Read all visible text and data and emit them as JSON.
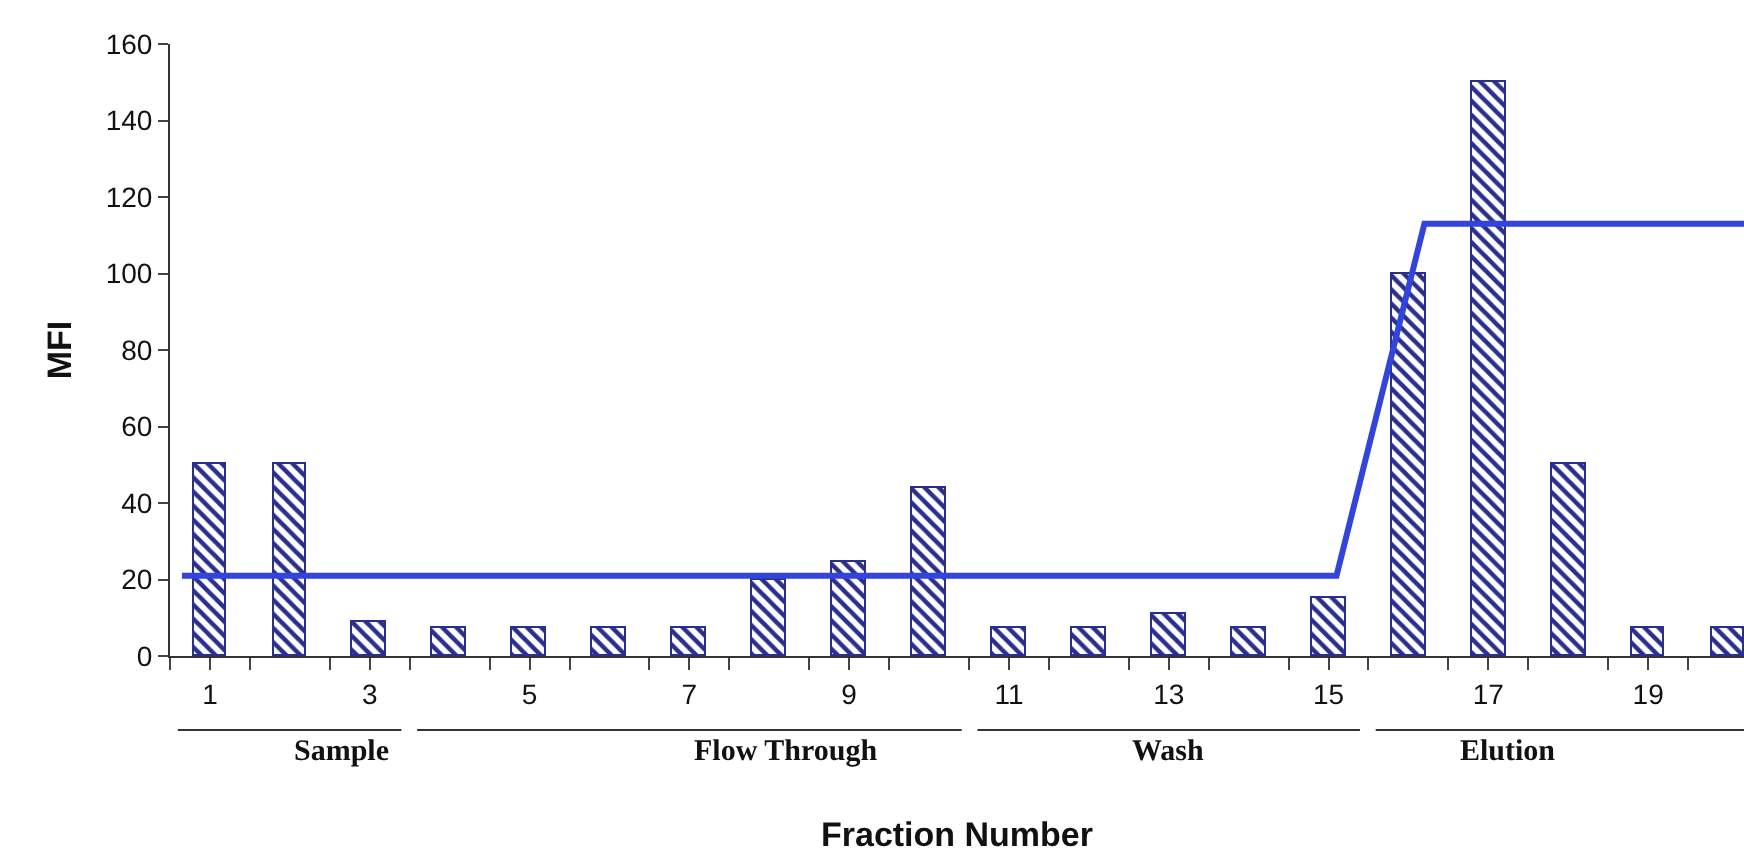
{
  "chart_data": {
    "type": "bar",
    "xlabel": "Fraction Number",
    "ylabel": "MFI",
    "x": [
      1,
      2,
      3,
      4,
      5,
      6,
      7,
      8,
      9,
      10,
      11,
      12,
      13,
      14,
      15,
      16,
      17,
      18,
      19,
      20
    ],
    "series": [
      {
        "color": "#2a2f8c",
        "values": [
          50,
          50,
          9,
          7.5,
          7.5,
          7.5,
          7.5,
          20,
          24.5,
          44,
          7.5,
          7.5,
          11,
          7.5,
          15,
          100,
          150,
          50,
          7.5,
          7.5
        ]
      },
      {
        "type": "line",
        "color": "#3344dd",
        "x": [
          0.65,
          15.1,
          16.2,
          20.2
        ],
        "values": [
          21,
          21,
          113,
          113
        ]
      }
    ],
    "xlim": [
      0.5,
      20.2
    ],
    "xticks": [
      {
        "value": 0.5,
        "label": null
      },
      1,
      {
        "value": 1.5,
        "label": null
      },
      {
        "value": 2.5,
        "label": null
      },
      3,
      {
        "value": 3.5,
        "label": null
      },
      {
        "value": 4.5,
        "label": null
      },
      5,
      {
        "value": 5.5,
        "label": null
      },
      {
        "value": 6.5,
        "label": null
      },
      7,
      {
        "value": 7.5,
        "label": null
      },
      {
        "value": 8.5,
        "label": null
      },
      9,
      {
        "value": 9.5,
        "label": null
      },
      {
        "value": 10.5,
        "label": null
      },
      11,
      {
        "value": 11.5,
        "label": null
      },
      {
        "value": 12.5,
        "label": null
      },
      13,
      {
        "value": 13.5,
        "label": null
      },
      {
        "value": 14.5,
        "label": null
      },
      15,
      {
        "value": 15.5,
        "label": null
      },
      {
        "value": 16.5,
        "label": null
      },
      17,
      {
        "value": 17.5,
        "label": null
      },
      {
        "value": 18.5,
        "label": null
      },
      19,
      {
        "value": 19.5,
        "label": null
      }
    ],
    "ylim": [
      0,
      160
    ],
    "yticks": [
      0,
      20,
      40,
      60,
      80,
      100,
      120,
      140,
      160
    ],
    "annotations": [
      "Sample",
      "Flow Through",
      "Wash",
      "Elution"
    ],
    "grid": false,
    "legend": false
  }
}
